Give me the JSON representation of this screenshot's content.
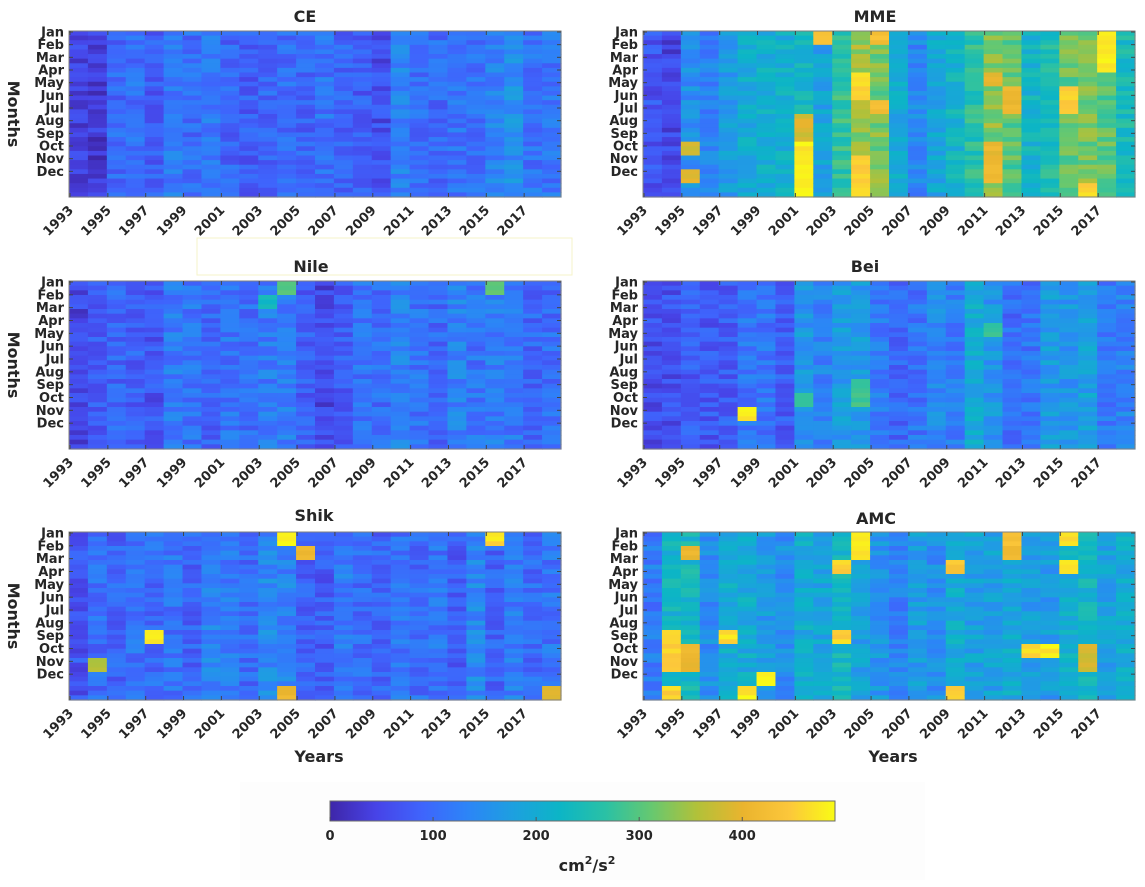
{
  "chart_data": [
    {
      "type": "heatmap",
      "title": "CE",
      "xlabel": "",
      "ylabel": "Months",
      "x": [
        1993,
        1994,
        1995,
        1996,
        1997,
        1998,
        1999,
        2000,
        2001,
        2002,
        2003,
        2004,
        2005,
        2006,
        2007,
        2008,
        2009,
        2010,
        2011,
        2012,
        2013,
        2014,
        2015,
        2016,
        2017,
        2018
      ],
      "x_ticks": [
        "1993",
        "1995",
        "1997",
        "1999",
        "2001",
        "2003",
        "2005",
        "2007",
        "2009",
        "2011",
        "2013",
        "2015",
        "2017"
      ],
      "y_ticks": [
        "Jan",
        "Feb",
        "Mar",
        "Apr",
        "May",
        "Jun",
        "Jul",
        "Aug",
        "Sep",
        "Oct",
        "Nov",
        "Dec"
      ],
      "zlim": [
        0,
        490
      ],
      "year_mean": [
        40,
        35,
        95,
        105,
        80,
        120,
        100,
        120,
        90,
        80,
        95,
        100,
        90,
        110,
        90,
        80,
        60,
        130,
        100,
        100,
        110,
        110,
        130,
        150,
        110,
        110
      ],
      "hot_spots": []
    },
    {
      "type": "heatmap",
      "title": "MME",
      "xlabel": "",
      "ylabel": "",
      "x": [
        1993,
        1994,
        1995,
        1996,
        1997,
        1998,
        1999,
        2000,
        2001,
        2002,
        2003,
        2004,
        2005,
        2006,
        2007,
        2008,
        2009,
        2010,
        2011,
        2012,
        2013,
        2014,
        2015,
        2016,
        2017,
        2018
      ],
      "x_ticks": [
        "1993",
        "1995",
        "1997",
        "1999",
        "2001",
        "2003",
        "2005",
        "2007",
        "2009",
        "2011",
        "2013",
        "2015",
        "2017"
      ],
      "y_ticks": [
        "Jan",
        "Feb",
        "Mar",
        "Apr",
        "May",
        "Jun",
        "Jul",
        "Aug",
        "Sep",
        "Oct",
        "Nov",
        "Dec"
      ],
      "zlim": [
        0,
        490
      ],
      "year_mean": [
        70,
        50,
        150,
        130,
        170,
        200,
        210,
        210,
        230,
        180,
        270,
        340,
        320,
        200,
        140,
        190,
        220,
        260,
        330,
        300,
        220,
        250,
        310,
        320,
        300,
        240
      ],
      "hot_spots": [
        {
          "year": 2001,
          "months": [
            9,
            10,
            11,
            12
          ],
          "value": 490
        },
        {
          "year": 2001,
          "months": [
            7,
            8
          ],
          "value": 400
        },
        {
          "year": 2002,
          "months": [
            1
          ],
          "value": 460
        },
        {
          "year": 2004,
          "months": [
            4,
            5,
            10,
            11,
            12
          ],
          "value": 470
        },
        {
          "year": 2005,
          "months": [
            1,
            6
          ],
          "value": 440
        },
        {
          "year": 2011,
          "months": [
            4,
            9,
            10,
            11
          ],
          "value": 420
        },
        {
          "year": 2012,
          "months": [
            5,
            6
          ],
          "value": 420
        },
        {
          "year": 2015,
          "months": [
            5,
            6
          ],
          "value": 470
        },
        {
          "year": 2016,
          "months": [
            12
          ],
          "value": 470
        },
        {
          "year": 2017,
          "months": [
            1,
            2,
            3
          ],
          "value": 490
        },
        {
          "year": 1995,
          "months": [
            9,
            11
          ],
          "value": 400
        }
      ]
    },
    {
      "type": "heatmap",
      "title": "Nile",
      "xlabel": "",
      "ylabel": "Months",
      "x": [
        1993,
        1994,
        1995,
        1996,
        1997,
        1998,
        1999,
        2000,
        2001,
        2002,
        2003,
        2004,
        2005,
        2006,
        2007,
        2008,
        2009,
        2010,
        2011,
        2012,
        2013,
        2014,
        2015,
        2016,
        2017,
        2018
      ],
      "x_ticks": [
        "1993",
        "1995",
        "1997",
        "1999",
        "2001",
        "2003",
        "2005",
        "2007",
        "2009",
        "2011",
        "2013",
        "2015",
        "2017"
      ],
      "y_ticks": [
        "Jan",
        "Feb",
        "Mar",
        "Apr",
        "May",
        "Jun",
        "Jul",
        "Aug",
        "Sep",
        "Oct",
        "Nov",
        "Dec"
      ],
      "zlim": [
        0,
        490
      ],
      "year_mean": [
        50,
        80,
        90,
        85,
        70,
        120,
        110,
        90,
        110,
        100,
        120,
        120,
        80,
        50,
        80,
        110,
        100,
        130,
        110,
        95,
        130,
        110,
        120,
        115,
        95,
        100
      ],
      "hot_spots": [
        {
          "year": 2004,
          "months": [
            1
          ],
          "value": 320
        },
        {
          "year": 2003,
          "months": [
            2
          ],
          "value": 250
        },
        {
          "year": 2015,
          "months": [
            1
          ],
          "value": 330
        }
      ]
    },
    {
      "type": "heatmap",
      "title": "Bei",
      "xlabel": "",
      "ylabel": "",
      "x": [
        1993,
        1994,
        1995,
        1996,
        1997,
        1998,
        1999,
        2000,
        2001,
        2002,
        2003,
        2004,
        2005,
        2006,
        2007,
        2008,
        2009,
        2010,
        2011,
        2012,
        2013,
        2014,
        2015,
        2016,
        2017,
        2018
      ],
      "x_ticks": [
        "1993",
        "1995",
        "1997",
        "1999",
        "2001",
        "2003",
        "2005",
        "2007",
        "2009",
        "2011",
        "2013",
        "2015",
        "2017"
      ],
      "y_ticks": [
        "Jan",
        "Feb",
        "Mar",
        "Apr",
        "May",
        "Jun",
        "Jul",
        "Aug",
        "Sep",
        "Oct",
        "Nov",
        "Dec"
      ],
      "zlim": [
        0,
        490
      ],
      "year_mean": [
        60,
        65,
        80,
        75,
        80,
        110,
        110,
        80,
        160,
        130,
        170,
        170,
        120,
        90,
        110,
        140,
        120,
        200,
        160,
        100,
        110,
        170,
        160,
        180,
        120,
        130
      ],
      "hot_spots": [
        {
          "year": 1998,
          "months": [
            10
          ],
          "value": 490
        },
        {
          "year": 2001,
          "months": [
            9
          ],
          "value": 300
        },
        {
          "year": 2004,
          "months": [
            8,
            9
          ],
          "value": 300
        },
        {
          "year": 2011,
          "months": [
            4
          ],
          "value": 290
        }
      ]
    },
    {
      "type": "heatmap",
      "title": "Shik",
      "xlabel": "Years",
      "ylabel": "Months",
      "x": [
        1993,
        1994,
        1995,
        1996,
        1997,
        1998,
        1999,
        2000,
        2001,
        2002,
        2003,
        2004,
        2005,
        2006,
        2007,
        2008,
        2009,
        2010,
        2011,
        2012,
        2013,
        2014,
        2015,
        2016,
        2017,
        2018
      ],
      "x_ticks": [
        "1993",
        "1995",
        "1997",
        "1999",
        "2001",
        "2003",
        "2005",
        "2007",
        "2009",
        "2011",
        "2013",
        "2015",
        "2017"
      ],
      "y_ticks": [
        "Jan",
        "Feb",
        "Mar",
        "Apr",
        "May",
        "Jun",
        "Jul",
        "Aug",
        "Sep",
        "Oct",
        "Nov",
        "Dec"
      ],
      "zlim": [
        0,
        490
      ],
      "year_mean": [
        70,
        100,
        90,
        110,
        100,
        110,
        90,
        130,
        120,
        100,
        140,
        130,
        90,
        80,
        120,
        100,
        90,
        110,
        100,
        110,
        80,
        140,
        90,
        120,
        100,
        110
      ],
      "hot_spots": [
        {
          "year": 2004,
          "months": [
            1
          ],
          "value": 490
        },
        {
          "year": 2005,
          "months": [
            2
          ],
          "value": 420
        },
        {
          "year": 1997,
          "months": [
            8
          ],
          "value": 490
        },
        {
          "year": 1994,
          "months": [
            10
          ],
          "value": 380
        },
        {
          "year": 2004,
          "months": [
            12
          ],
          "value": 420
        },
        {
          "year": 2015,
          "months": [
            1
          ],
          "value": 480
        },
        {
          "year": 2018,
          "months": [
            12
          ],
          "value": 400
        }
      ]
    },
    {
      "type": "heatmap",
      "title": "AMC",
      "xlabel": "Years",
      "ylabel": "",
      "x": [
        1993,
        1994,
        1995,
        1996,
        1997,
        1998,
        1999,
        2000,
        2001,
        2002,
        2003,
        2004,
        2005,
        2006,
        2007,
        2008,
        2009,
        2010,
        2011,
        2012,
        2013,
        2014,
        2015,
        2016,
        2017,
        2018
      ],
      "x_ticks": [
        "1993",
        "1995",
        "1997",
        "1999",
        "2001",
        "2003",
        "2005",
        "2007",
        "2009",
        "2011",
        "2013",
        "2015",
        "2017"
      ],
      "y_ticks": [
        "Jan",
        "Feb",
        "Mar",
        "Apr",
        "May",
        "Jun",
        "Jul",
        "Aug",
        "Sep",
        "Oct",
        "Nov",
        "Dec"
      ],
      "zlim": [
        0,
        490
      ],
      "year_mean": [
        120,
        220,
        230,
        150,
        200,
        200,
        170,
        150,
        200,
        190,
        230,
        180,
        160,
        130,
        170,
        150,
        200,
        180,
        180,
        200,
        170,
        170,
        210,
        220,
        180,
        200
      ],
      "hot_spots": [
        {
          "year": 2004,
          "months": [
            1,
            2
          ],
          "value": 490
        },
        {
          "year": 2003,
          "months": [
            3,
            8
          ],
          "value": 470
        },
        {
          "year": 1994,
          "months": [
            8,
            9,
            10,
            12
          ],
          "value": 470
        },
        {
          "year": 1995,
          "months": [
            2,
            9,
            10
          ],
          "value": 420
        },
        {
          "year": 1997,
          "months": [
            8
          ],
          "value": 480
        },
        {
          "year": 1998,
          "months": [
            12
          ],
          "value": 490
        },
        {
          "year": 1999,
          "months": [
            11
          ],
          "value": 490
        },
        {
          "year": 2012,
          "months": [
            1,
            2
          ],
          "value": 440
        },
        {
          "year": 2013,
          "months": [
            9
          ],
          "value": 480
        },
        {
          "year": 2014,
          "months": [
            9
          ],
          "value": 490
        },
        {
          "year": 2015,
          "months": [
            1,
            3
          ],
          "value": 480
        },
        {
          "year": 2009,
          "months": [
            3,
            12
          ],
          "value": 460
        },
        {
          "year": 2016,
          "months": [
            9,
            10
          ],
          "value": 400
        }
      ]
    }
  ],
  "colorbar": {
    "ticks": [
      "0",
      "100",
      "200",
      "300",
      "400"
    ],
    "tick_values": [
      0,
      100,
      200,
      300,
      400
    ],
    "range": [
      0,
      490
    ],
    "label_base": "cm",
    "label_sup1": "2",
    "label_mid": "/s",
    "label_sup2": "2",
    "colormap": "parula",
    "stops": [
      "#3e26a8",
      "#4743e7",
      "#3f64fc",
      "#2c85f7",
      "#1da0df",
      "#0cb5c6",
      "#2ac1a5",
      "#66c870",
      "#b2c139",
      "#eab42e",
      "#fcc73b",
      "#f9fb15"
    ]
  }
}
